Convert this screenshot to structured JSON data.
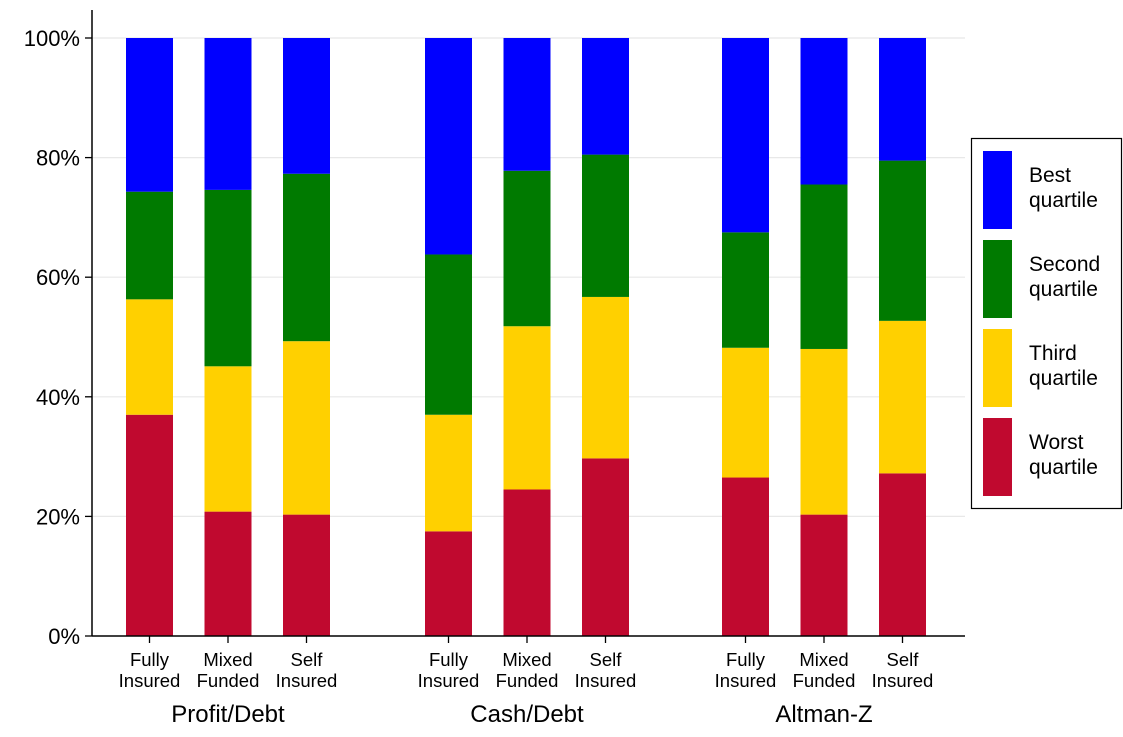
{
  "chart_data": {
    "type": "bar",
    "stacked": true,
    "percent": true,
    "ylim": [
      0,
      100
    ],
    "yticks": [
      "0%",
      "20%",
      "40%",
      "60%",
      "80%",
      "100%"
    ],
    "grid": true,
    "legend_position": "right",
    "groups": [
      {
        "label": "Profit/Debt",
        "bars": [
          {
            "label": [
              "Fully",
              "Insured"
            ],
            "values": [
              37.0,
              19.3,
              18.0,
              25.7
            ]
          },
          {
            "label": [
              "Mixed",
              "Funded"
            ],
            "values": [
              20.8,
              24.3,
              29.5,
              25.4
            ]
          },
          {
            "label": [
              "Self",
              "Insured"
            ],
            "values": [
              20.3,
              29.0,
              28.0,
              22.7
            ]
          }
        ]
      },
      {
        "label": "Cash/Debt",
        "bars": [
          {
            "label": [
              "Fully",
              "Insured"
            ],
            "values": [
              17.5,
              19.5,
              26.8,
              36.2
            ]
          },
          {
            "label": [
              "Mixed",
              "Funded"
            ],
            "values": [
              24.5,
              27.3,
              26.0,
              22.2
            ]
          },
          {
            "label": [
              "Self",
              "Insured"
            ],
            "values": [
              29.7,
              27.0,
              23.8,
              19.5
            ]
          }
        ]
      },
      {
        "label": "Altman-Z",
        "bars": [
          {
            "label": [
              "Fully",
              "Insured"
            ],
            "values": [
              26.5,
              21.7,
              19.3,
              32.5
            ]
          },
          {
            "label": [
              "Mixed",
              "Funded"
            ],
            "values": [
              20.3,
              27.7,
              27.5,
              24.5
            ]
          },
          {
            "label": [
              "Self",
              "Insured"
            ],
            "values": [
              27.2,
              25.5,
              26.8,
              20.5
            ]
          }
        ]
      }
    ],
    "series": [
      {
        "name": [
          "Worst",
          "quartile"
        ],
        "color": "#C0092F"
      },
      {
        "name": [
          "Third",
          "quartile"
        ],
        "color": "#FFD000"
      },
      {
        "name": [
          "Second",
          "quartile"
        ],
        "color": "#007A00"
      },
      {
        "name": [
          "Best",
          "quartile"
        ],
        "color": "#0000FF"
      }
    ]
  }
}
